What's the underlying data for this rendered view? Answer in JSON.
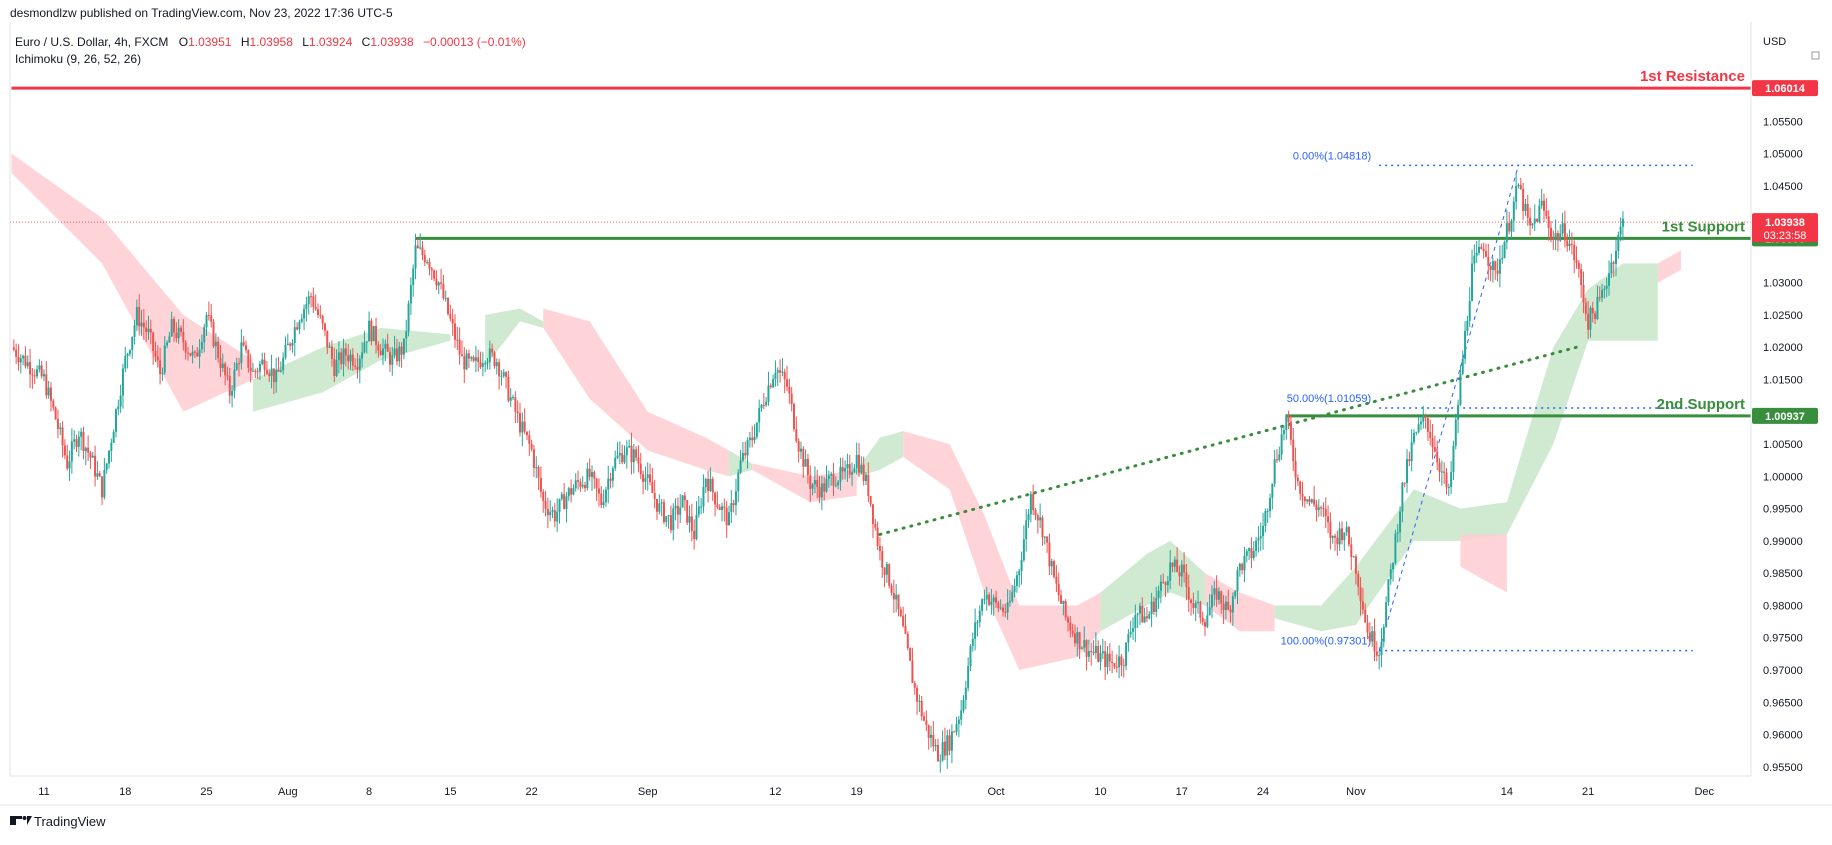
{
  "header": {
    "published_line": "desmondlzw published on TradingView.com, Nov 23, 2022 17:36 UTC-5",
    "symbol": "Euro / U.S. Dollar, 4h, FXCM",
    "ohlc": [
      {
        "k": "O",
        "v": "1.03951"
      },
      {
        "k": "H",
        "v": "1.03958"
      },
      {
        "k": "L",
        "v": "1.03924"
      },
      {
        "k": "C",
        "v": "1.03938"
      }
    ],
    "change": "−0.00013 (−0.01%)",
    "indicator": "Ichimoku (9, 26, 52, 26)",
    "currency": "USD"
  },
  "footer": {
    "brand": "TradingView"
  },
  "colors": {
    "resistance": "#f23645",
    "support": "#388e3c",
    "bull": "#26a69a",
    "bear": "#ef5350",
    "fib": "#2962ff",
    "cloud_bull": "#c8e6c9",
    "cloud_bear": "#ffcdd2"
  },
  "chart_data": {
    "type": "candlestick",
    "title": "Euro / U.S. Dollar, 4h, FXCM",
    "ylim": [
      0.9525,
      1.0645
    ],
    "ylabel": "USD",
    "y_ticks": [
      "1.05500",
      "1.05000",
      "1.04500",
      "1.03000",
      "1.02500",
      "1.02000",
      "1.01500",
      "1.00500",
      "1.00000",
      "0.99500",
      "0.99000",
      "0.98500",
      "0.98000",
      "0.97500",
      "0.97000",
      "0.96500",
      "0.96000",
      "0.95500"
    ],
    "x_ticks": [
      {
        "label": "11",
        "day": 0
      },
      {
        "label": "18",
        "day": 7
      },
      {
        "label": "25",
        "day": 14
      },
      {
        "label": "Aug",
        "day": 21
      },
      {
        "label": "8",
        "day": 28
      },
      {
        "label": "15",
        "day": 35
      },
      {
        "label": "22",
        "day": 42
      },
      {
        "label": "Sep",
        "day": 52
      },
      {
        "label": "12",
        "day": 63
      },
      {
        "label": "19",
        "day": 70
      },
      {
        "label": "Oct",
        "day": 82
      },
      {
        "label": "10",
        "day": 91
      },
      {
        "label": "17",
        "day": 98
      },
      {
        "label": "24",
        "day": 105
      },
      {
        "label": "Nov",
        "day": 113
      },
      {
        "label": "14",
        "day": 126
      },
      {
        "label": "21",
        "day": 133
      },
      {
        "label": "Dec",
        "day": 143
      }
    ],
    "price_path": [
      [
        -2.8,
        1.02
      ],
      [
        0,
        1.015
      ],
      [
        1,
        1.009
      ],
      [
        2,
        1.002
      ],
      [
        3,
        1.007
      ],
      [
        4,
        1.003
      ],
      [
        5,
        0.998
      ],
      [
        6,
        1.008
      ],
      [
        7,
        1.018
      ],
      [
        8,
        1.025
      ],
      [
        9,
        1.022
      ],
      [
        10,
        1.016
      ],
      [
        11,
        1.023
      ],
      [
        12,
        1.021
      ],
      [
        13,
        1.018
      ],
      [
        14,
        1.025
      ],
      [
        15,
        1.019
      ],
      [
        16,
        1.013
      ],
      [
        17,
        1.02
      ],
      [
        18,
        1.016
      ],
      [
        19,
        1.018
      ],
      [
        20,
        1.015
      ],
      [
        21,
        1.02
      ],
      [
        22,
        1.025
      ],
      [
        23,
        1.028
      ],
      [
        24,
        1.023
      ],
      [
        25,
        1.017
      ],
      [
        26,
        1.019
      ],
      [
        27,
        1.018
      ],
      [
        28,
        1.023
      ],
      [
        29,
        1.02
      ],
      [
        30,
        1.018
      ],
      [
        31,
        1.02
      ],
      [
        32,
        1.035
      ],
      [
        33,
        1.034
      ],
      [
        34,
        1.03
      ],
      [
        35,
        1.024
      ],
      [
        36,
        1.018
      ],
      [
        37,
        1.017
      ],
      [
        38,
        1.019
      ],
      [
        39,
        1.018
      ],
      [
        40,
        1.013
      ],
      [
        41,
        1.008
      ],
      [
        42,
        1.004
      ],
      [
        43,
        0.996
      ],
      [
        44,
        0.994
      ],
      [
        45,
        0.997
      ],
      [
        46,
        0.999
      ],
      [
        47,
        1.0
      ],
      [
        48,
        0.996
      ],
      [
        49,
        1.002
      ],
      [
        50,
        1.004
      ],
      [
        51,
        1.003
      ],
      [
        52,
        0.999
      ],
      [
        53,
        0.995
      ],
      [
        54,
        0.993
      ],
      [
        55,
        0.996
      ],
      [
        56,
        0.991
      ],
      [
        57,
        1.0
      ],
      [
        58,
        0.996
      ],
      [
        59,
        0.993
      ],
      [
        60,
        1.002
      ],
      [
        61,
        1.006
      ],
      [
        62,
        1.012
      ],
      [
        63,
        1.017
      ],
      [
        64,
        1.014
      ],
      [
        65,
        1.005
      ],
      [
        66,
        0.999
      ],
      [
        67,
        0.998
      ],
      [
        68,
        1.0
      ],
      [
        69,
        1.0
      ],
      [
        70,
        1.003
      ],
      [
        71,
        0.998
      ],
      [
        72,
        0.988
      ],
      [
        73,
        0.983
      ],
      [
        74,
        0.976
      ],
      [
        75,
        0.967
      ],
      [
        76,
        0.961
      ],
      [
        77,
        0.957
      ],
      [
        78,
        0.959
      ],
      [
        79,
        0.964
      ],
      [
        80,
        0.975
      ],
      [
        81,
        0.982
      ],
      [
        82,
        0.98
      ],
      [
        83,
        0.979
      ],
      [
        84,
        0.986
      ],
      [
        85,
        0.997
      ],
      [
        86,
        0.992
      ],
      [
        87,
        0.984
      ],
      [
        88,
        0.978
      ],
      [
        89,
        0.975
      ],
      [
        90,
        0.973
      ],
      [
        91,
        0.972
      ],
      [
        92,
        0.971
      ],
      [
        93,
        0.972
      ],
      [
        94,
        0.979
      ],
      [
        95,
        0.978
      ],
      [
        96,
        0.982
      ],
      [
        97,
        0.986
      ],
      [
        98,
        0.985
      ],
      [
        99,
        0.98
      ],
      [
        100,
        0.978
      ],
      [
        101,
        0.982
      ],
      [
        102,
        0.979
      ],
      [
        103,
        0.986
      ],
      [
        104,
        0.988
      ],
      [
        105,
        0.992
      ],
      [
        106,
        1.002
      ],
      [
        107,
        1.009
      ],
      [
        108,
        0.999
      ],
      [
        109,
        0.996
      ],
      [
        110,
        0.995
      ],
      [
        111,
        0.99
      ],
      [
        112,
        0.992
      ],
      [
        113,
        0.986
      ],
      [
        114,
        0.976
      ],
      [
        115,
        0.973
      ],
      [
        116,
        0.985
      ],
      [
        117,
        0.998
      ],
      [
        118,
        1.006
      ],
      [
        119,
        1.009
      ],
      [
        120,
        1.003
      ],
      [
        121,
        0.997
      ],
      [
        122,
        1.015
      ],
      [
        123,
        1.032
      ],
      [
        124,
        1.036
      ],
      [
        125,
        1.031
      ],
      [
        126,
        1.038
      ],
      [
        127,
        1.045
      ],
      [
        128,
        1.038
      ],
      [
        129,
        1.042
      ],
      [
        130,
        1.037
      ],
      [
        131,
        1.038
      ],
      [
        132,
        1.033
      ],
      [
        133,
        1.024
      ],
      [
        134,
        1.027
      ],
      [
        135,
        1.033
      ],
      [
        136,
        1.0394
      ]
    ],
    "ichimoku_cloud": [
      {
        "color": "bear",
        "top": [
          [
            -2.8,
            1.05
          ],
          [
            5,
            1.04
          ],
          [
            12,
            1.025
          ],
          [
            18,
            1.018
          ]
        ],
        "bottom": [
          [
            -2.8,
            1.047
          ],
          [
            5,
            1.033
          ],
          [
            12,
            1.01
          ],
          [
            18,
            1.015
          ]
        ]
      },
      {
        "color": "bull",
        "top": [
          [
            18,
            1.015
          ],
          [
            24,
            1.02
          ],
          [
            29,
            1.023
          ],
          [
            35,
            1.022
          ]
        ],
        "bottom": [
          [
            18,
            1.01
          ],
          [
            24,
            1.013
          ],
          [
            29,
            1.018
          ],
          [
            35,
            1.021
          ]
        ]
      },
      {
        "color": "bull",
        "top": [
          [
            38,
            1.025
          ],
          [
            41,
            1.026
          ],
          [
            43,
            1.024
          ]
        ],
        "bottom": [
          [
            38,
            1.017
          ],
          [
            41,
            1.024
          ],
          [
            43,
            1.023
          ]
        ]
      },
      {
        "color": "bear",
        "top": [
          [
            43,
            1.026
          ],
          [
            47,
            1.024
          ],
          [
            52,
            1.01
          ],
          [
            57,
            1.006
          ],
          [
            59,
            1.004
          ]
        ],
        "bottom": [
          [
            43,
            1.023
          ],
          [
            47,
            1.012
          ],
          [
            52,
            1.004
          ],
          [
            57,
            1.001
          ],
          [
            59,
            1.0
          ]
        ]
      },
      {
        "color": "bull",
        "top": [
          [
            59,
            1.004
          ],
          [
            61,
            1.002
          ]
        ],
        "bottom": [
          [
            59,
            1.0
          ],
          [
            61,
            1.001
          ]
        ]
      },
      {
        "color": "bear",
        "top": [
          [
            61,
            1.002
          ],
          [
            66,
            1.0
          ],
          [
            70,
            1.001
          ]
        ],
        "bottom": [
          [
            61,
            1.001
          ],
          [
            66,
            0.996
          ],
          [
            70,
            0.997
          ]
        ]
      },
      {
        "color": "bull",
        "top": [
          [
            70,
            1.001
          ],
          [
            72,
            1.006
          ],
          [
            74,
            1.007
          ]
        ],
        "bottom": [
          [
            70,
            1.0
          ],
          [
            72,
            1.001
          ],
          [
            74,
            1.003
          ]
        ]
      },
      {
        "color": "bear",
        "top": [
          [
            74,
            1.007
          ],
          [
            78,
            1.005
          ],
          [
            81,
            0.994
          ],
          [
            84,
            0.98
          ],
          [
            89,
            0.98
          ],
          [
            91,
            0.982
          ]
        ],
        "bottom": [
          [
            74,
            1.003
          ],
          [
            78,
            0.998
          ],
          [
            81,
            0.982
          ],
          [
            84,
            0.97
          ],
          [
            89,
            0.972
          ],
          [
            91,
            0.976
          ]
        ]
      },
      {
        "color": "bull",
        "top": [
          [
            91,
            0.982
          ],
          [
            95,
            0.988
          ],
          [
            97,
            0.99
          ],
          [
            100,
            0.985
          ]
        ],
        "bottom": [
          [
            91,
            0.976
          ],
          [
            95,
            0.98
          ],
          [
            97,
            0.982
          ],
          [
            100,
            0.98
          ]
        ]
      },
      {
        "color": "bear",
        "top": [
          [
            100,
            0.985
          ],
          [
            103,
            0.982
          ],
          [
            106,
            0.98
          ]
        ],
        "bottom": [
          [
            100,
            0.98
          ],
          [
            103,
            0.976
          ],
          [
            106,
            0.976
          ]
        ]
      },
      {
        "color": "bull",
        "top": [
          [
            106,
            0.98
          ],
          [
            110,
            0.98
          ],
          [
            113,
            0.986
          ],
          [
            118,
            0.998
          ],
          [
            122,
            0.995
          ],
          [
            126,
            0.996
          ],
          [
            130,
            1.02
          ],
          [
            133,
            1.029
          ],
          [
            136,
            1.033
          ],
          [
            139,
            1.033
          ]
        ],
        "bottom": [
          [
            106,
            0.978
          ],
          [
            110,
            0.976
          ],
          [
            113,
            0.977
          ],
          [
            118,
            0.99
          ],
          [
            122,
            0.99
          ],
          [
            126,
            0.991
          ],
          [
            130,
            1.005
          ],
          [
            133,
            1.021
          ],
          [
            136,
            1.021
          ],
          [
            139,
            1.021
          ]
        ]
      },
      {
        "color": "bear",
        "top": [
          [
            122,
            0.991
          ],
          [
            126,
            0.991
          ]
        ],
        "bottom": [
          [
            122,
            0.986
          ],
          [
            126,
            0.982
          ]
        ]
      },
      {
        "color": "bear",
        "top": [
          [
            139,
            1.033
          ],
          [
            141,
            1.035
          ]
        ],
        "bottom": [
          [
            139,
            1.03
          ],
          [
            141,
            1.032
          ]
        ]
      }
    ],
    "levels": [
      {
        "name": "1st Resistance",
        "price": 1.06014,
        "label": "1.06014",
        "color": "resistance",
        "start_day": -2.8
      },
      {
        "name": "1st Support",
        "price": 1.03686,
        "label": "1.03686",
        "color": "support",
        "start_day": 32
      },
      {
        "name": "2nd Support",
        "price": 1.00937,
        "label": "1.00937",
        "color": "support",
        "start_day": 107
      }
    ],
    "fibonacci": [
      {
        "label": "0.00%(1.04818)",
        "price": 1.04818
      },
      {
        "label": "50.00%(1.01059)",
        "price": 1.01059
      },
      {
        "label": "100.00%(0.97301)",
        "price": 0.97301
      }
    ],
    "fib_start_day": 115,
    "fib_end_day": 142,
    "trendline": [
      [
        72,
        0.991
      ],
      [
        132,
        1.02
      ]
    ],
    "fib_anchor_line": [
      [
        115,
        0.97301
      ],
      [
        127,
        1.04818
      ]
    ],
    "current_price": {
      "value": 1.03938,
      "label": "1.03938",
      "countdown": "03:23:58"
    }
  }
}
